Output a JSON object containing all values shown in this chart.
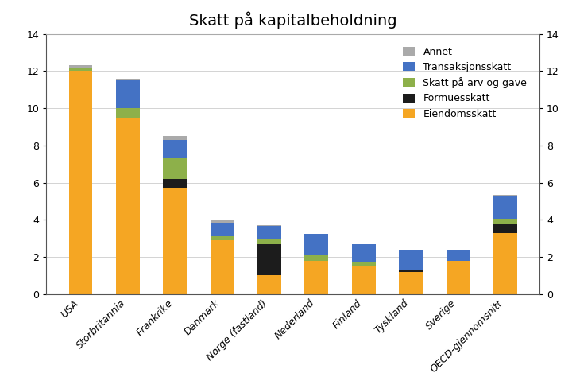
{
  "categories": [
    "USA",
    "Storbritannia",
    "Frankrike",
    "Danmark",
    "Norge (fastland)",
    "Nederland",
    "Finland",
    "Tyskland",
    "Sverige",
    "OECD-gjennomsnitt"
  ],
  "eiendomsskatt": [
    12.0,
    9.5,
    5.7,
    2.9,
    1.0,
    1.8,
    1.5,
    1.2,
    1.8,
    3.3
  ],
  "formuesskatt": [
    0.0,
    0.0,
    0.5,
    0.0,
    1.7,
    0.0,
    0.0,
    0.1,
    0.0,
    0.45
  ],
  "skatt_arv": [
    0.2,
    0.5,
    1.1,
    0.2,
    0.3,
    0.3,
    0.2,
    0.0,
    0.0,
    0.3
  ],
  "transaksjon": [
    0.0,
    1.5,
    1.0,
    0.7,
    0.65,
    1.15,
    1.0,
    1.1,
    0.6,
    1.2
  ],
  "annet": [
    0.1,
    0.1,
    0.2,
    0.2,
    0.05,
    0.0,
    0.0,
    0.0,
    0.0,
    0.1
  ],
  "colors": {
    "eiendomsskatt": "#F5A623",
    "formuesskatt": "#1C1C1C",
    "skatt_arv": "#8DB04A",
    "transaksjon": "#4472C4",
    "annet": "#AAAAAA"
  },
  "legend_labels": [
    "Annet",
    "Transaksjonsskatt",
    "Skatt på arv og gave",
    "Formuesskatt",
    "Eiendomsskatt"
  ],
  "title": "Skatt på kapitalbeholdning",
  "ylim": [
    0,
    14
  ],
  "yticks": [
    0,
    2,
    4,
    6,
    8,
    10,
    12,
    14
  ],
  "background_color": "#FFFFFF",
  "title_fontsize": 14,
  "tick_fontsize": 9,
  "legend_fontsize": 9,
  "bar_width": 0.5
}
